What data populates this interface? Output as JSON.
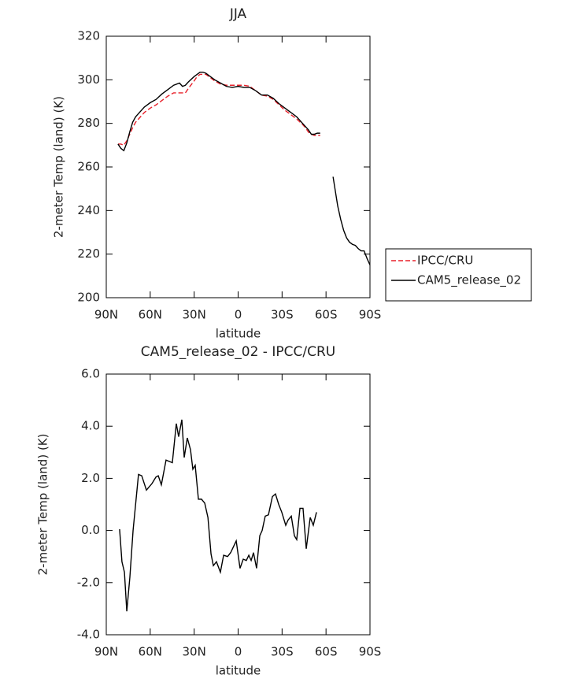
{
  "chart_data": [
    {
      "type": "line",
      "title": "JJA",
      "xlabel": "latitude",
      "ylabel": "2-meter Temp (land) (K)",
      "x": [
        82,
        80,
        78,
        76,
        74,
        72,
        70,
        68,
        66,
        64,
        62,
        60,
        56,
        52,
        48,
        44,
        40,
        38,
        36,
        34,
        30,
        28,
        26,
        24,
        22,
        20,
        18,
        16,
        12,
        8,
        4,
        0,
        -4,
        -8,
        -12,
        -16,
        -20,
        -24,
        -28,
        -32,
        -36,
        -40,
        -44,
        -46,
        -48,
        -50,
        -52,
        -54,
        -56,
        -60,
        -64.8,
        -68,
        -70,
        -72,
        -74,
        -76,
        -78,
        -80,
        -82,
        -84,
        -86,
        -88,
        -90
      ],
      "series": [
        {
          "name": "IPCC/CRU",
          "color": "#e8202a",
          "dash": true,
          "values": [
            270.5,
            270.5,
            270,
            272,
            275,
            278,
            280.5,
            282,
            283.5,
            285,
            286,
            287,
            288.5,
            290.5,
            292.5,
            294,
            294,
            294,
            294,
            296,
            299.5,
            301.5,
            302.5,
            302.5,
            302.5,
            301.5,
            300.5,
            299.5,
            298,
            297.5,
            297.5,
            297.5,
            297.5,
            297,
            295,
            293,
            292.5,
            291,
            288.5,
            286,
            284,
            282,
            279.5,
            278,
            276,
            275,
            274.5,
            274.5,
            274.5,
            null,
            null,
            null,
            null,
            null,
            null,
            null,
            null,
            null,
            null,
            null,
            null,
            null,
            null
          ]
        },
        {
          "name": "CAM5_release_02",
          "color": "#000000",
          "dash": false,
          "values": [
            270.5,
            268.5,
            267.5,
            271,
            276,
            280.5,
            283,
            284.5,
            286,
            287.5,
            288.5,
            289.5,
            291,
            293.5,
            295.5,
            297.5,
            298.5,
            297,
            297.5,
            299,
            301.5,
            302.5,
            303.5,
            303.5,
            303,
            302,
            301,
            300,
            298.5,
            297,
            296.5,
            297,
            296.5,
            296.5,
            295,
            293,
            293,
            291.5,
            289,
            287,
            285,
            283,
            280,
            278.5,
            277,
            275,
            275,
            275.5,
            275.5,
            null,
            255.5,
            242,
            236,
            231,
            227.5,
            225.5,
            224.5,
            224,
            222.5,
            221.5,
            221.5,
            218,
            215
          ]
        }
      ],
      "xlim": [
        90,
        -90
      ],
      "xticks": [
        {
          "value": 90,
          "label": "90N"
        },
        {
          "value": 60,
          "label": "60N"
        },
        {
          "value": 30,
          "label": "30N"
        },
        0,
        {
          "value": -30,
          "label": "30S"
        },
        {
          "value": -60,
          "label": "60S"
        },
        {
          "value": -90,
          "label": "90S"
        }
      ],
      "ylim": [
        200,
        320
      ],
      "yticks": [
        200,
        220,
        240,
        260,
        280,
        300,
        320
      ],
      "legend": "right"
    },
    {
      "type": "line",
      "title": "CAM5_release_02 - IPCC/CRU",
      "xlabel": "latitude",
      "ylabel": "2-meter Temp (land) (K)",
      "x": [
        80.9,
        79.3,
        77.6,
        76,
        73.9,
        71.7,
        68,
        65.8,
        62.6,
        58.8,
        56.1,
        54.5,
        52.4,
        49.2,
        44.9,
        42.2,
        40.6,
        38.4,
        36.8,
        34.7,
        32.5,
        30.9,
        29.3,
        27.1,
        25,
        22.8,
        20.6,
        18.5,
        16.9,
        14.8,
        12.1,
        9.9,
        7.2,
        5.1,
        1.3,
        -1.3,
        -3.5,
        -5.6,
        -7.3,
        -8.9,
        -10.5,
        -12.6,
        -14.8,
        -16.4,
        -18.5,
        -20.7,
        -23.4,
        -25.5,
        -27.7,
        -29.8,
        -32.5,
        -34.1,
        -36.3,
        -38.4,
        -40,
        -42.2,
        -44.3,
        -46.5,
        -49.2,
        -51.3,
        -53.5
      ],
      "values": [
        0.05,
        -1.2,
        -1.6,
        -3.1,
        -1.8,
        0,
        2.15,
        2.1,
        1.55,
        1.8,
        2.05,
        2.1,
        1.75,
        2.7,
        2.6,
        4.1,
        3.6,
        4.25,
        2.8,
        3.55,
        3.1,
        2.35,
        2.5,
        1.2,
        1.2,
        1.05,
        0.5,
        -0.9,
        -1.35,
        -1.2,
        -1.6,
        -0.95,
        -1,
        -0.85,
        -0.4,
        -1.45,
        -1.1,
        -1.15,
        -0.95,
        -1.15,
        -0.85,
        -1.45,
        -0.2,
        0,
        0.55,
        0.6,
        1.3,
        1.4,
        1,
        0.7,
        0.2,
        0.4,
        0.55,
        -0.2,
        -0.35,
        0.85,
        0.85,
        -0.7,
        0.5,
        0.2,
        0.7
      ],
      "color": "#000000",
      "xlim": [
        90,
        -90
      ],
      "xticks": [
        {
          "value": 90,
          "label": "90N"
        },
        {
          "value": 60,
          "label": "60N"
        },
        {
          "value": 30,
          "label": "30N"
        },
        0,
        {
          "value": -30,
          "label": "30S"
        },
        {
          "value": -60,
          "label": "60S"
        },
        {
          "value": -90,
          "label": "90S"
        }
      ],
      "ylim": [
        -4,
        6
      ],
      "yticks": [
        {
          "value": -4,
          "label": "-4.0"
        },
        {
          "value": -2,
          "label": "-2.0"
        },
        {
          "value": 0,
          "label": "0.0"
        },
        {
          "value": 2,
          "label": "2.0"
        },
        {
          "value": 4,
          "label": "4.0"
        },
        {
          "value": 6,
          "label": "6.0"
        }
      ]
    }
  ]
}
